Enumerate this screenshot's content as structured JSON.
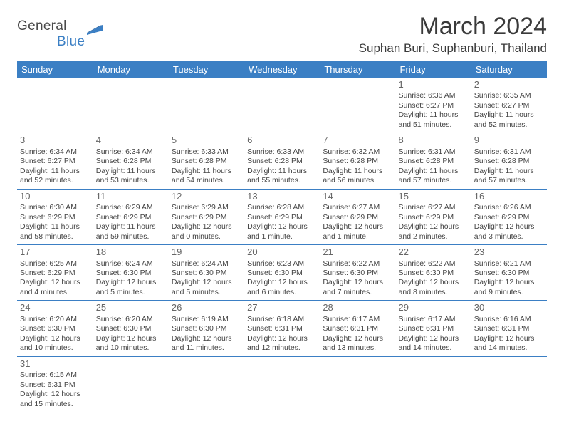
{
  "logo": {
    "general": "General",
    "blue": "Blue"
  },
  "title": "March 2024",
  "location": "Suphan Buri, Suphanburi, Thailand",
  "colors": {
    "brand_blue": "#3b7fc4",
    "text": "#333333",
    "daynum": "#666666",
    "bg": "#ffffff"
  },
  "days_of_week": [
    "Sunday",
    "Monday",
    "Tuesday",
    "Wednesday",
    "Thursday",
    "Friday",
    "Saturday"
  ],
  "calendar": {
    "type": "table",
    "first_weekday_index": 5,
    "num_days": 31,
    "cells": {
      "1": {
        "sunrise": "6:36 AM",
        "sunset": "6:27 PM",
        "daylight": "11 hours and 51 minutes."
      },
      "2": {
        "sunrise": "6:35 AM",
        "sunset": "6:27 PM",
        "daylight": "11 hours and 52 minutes."
      },
      "3": {
        "sunrise": "6:34 AM",
        "sunset": "6:27 PM",
        "daylight": "11 hours and 52 minutes."
      },
      "4": {
        "sunrise": "6:34 AM",
        "sunset": "6:28 PM",
        "daylight": "11 hours and 53 minutes."
      },
      "5": {
        "sunrise": "6:33 AM",
        "sunset": "6:28 PM",
        "daylight": "11 hours and 54 minutes."
      },
      "6": {
        "sunrise": "6:33 AM",
        "sunset": "6:28 PM",
        "daylight": "11 hours and 55 minutes."
      },
      "7": {
        "sunrise": "6:32 AM",
        "sunset": "6:28 PM",
        "daylight": "11 hours and 56 minutes."
      },
      "8": {
        "sunrise": "6:31 AM",
        "sunset": "6:28 PM",
        "daylight": "11 hours and 57 minutes."
      },
      "9": {
        "sunrise": "6:31 AM",
        "sunset": "6:28 PM",
        "daylight": "11 hours and 57 minutes."
      },
      "10": {
        "sunrise": "6:30 AM",
        "sunset": "6:29 PM",
        "daylight": "11 hours and 58 minutes."
      },
      "11": {
        "sunrise": "6:29 AM",
        "sunset": "6:29 PM",
        "daylight": "11 hours and 59 minutes."
      },
      "12": {
        "sunrise": "6:29 AM",
        "sunset": "6:29 PM",
        "daylight": "12 hours and 0 minutes."
      },
      "13": {
        "sunrise": "6:28 AM",
        "sunset": "6:29 PM",
        "daylight": "12 hours and 1 minute."
      },
      "14": {
        "sunrise": "6:27 AM",
        "sunset": "6:29 PM",
        "daylight": "12 hours and 1 minute."
      },
      "15": {
        "sunrise": "6:27 AM",
        "sunset": "6:29 PM",
        "daylight": "12 hours and 2 minutes."
      },
      "16": {
        "sunrise": "6:26 AM",
        "sunset": "6:29 PM",
        "daylight": "12 hours and 3 minutes."
      },
      "17": {
        "sunrise": "6:25 AM",
        "sunset": "6:29 PM",
        "daylight": "12 hours and 4 minutes."
      },
      "18": {
        "sunrise": "6:24 AM",
        "sunset": "6:30 PM",
        "daylight": "12 hours and 5 minutes."
      },
      "19": {
        "sunrise": "6:24 AM",
        "sunset": "6:30 PM",
        "daylight": "12 hours and 5 minutes."
      },
      "20": {
        "sunrise": "6:23 AM",
        "sunset": "6:30 PM",
        "daylight": "12 hours and 6 minutes."
      },
      "21": {
        "sunrise": "6:22 AM",
        "sunset": "6:30 PM",
        "daylight": "12 hours and 7 minutes."
      },
      "22": {
        "sunrise": "6:22 AM",
        "sunset": "6:30 PM",
        "daylight": "12 hours and 8 minutes."
      },
      "23": {
        "sunrise": "6:21 AM",
        "sunset": "6:30 PM",
        "daylight": "12 hours and 9 minutes."
      },
      "24": {
        "sunrise": "6:20 AM",
        "sunset": "6:30 PM",
        "daylight": "12 hours and 10 minutes."
      },
      "25": {
        "sunrise": "6:20 AM",
        "sunset": "6:30 PM",
        "daylight": "12 hours and 10 minutes."
      },
      "26": {
        "sunrise": "6:19 AM",
        "sunset": "6:30 PM",
        "daylight": "12 hours and 11 minutes."
      },
      "27": {
        "sunrise": "6:18 AM",
        "sunset": "6:31 PM",
        "daylight": "12 hours and 12 minutes."
      },
      "28": {
        "sunrise": "6:17 AM",
        "sunset": "6:31 PM",
        "daylight": "12 hours and 13 minutes."
      },
      "29": {
        "sunrise": "6:17 AM",
        "sunset": "6:31 PM",
        "daylight": "12 hours and 14 minutes."
      },
      "30": {
        "sunrise": "6:16 AM",
        "sunset": "6:31 PM",
        "daylight": "12 hours and 14 minutes."
      },
      "31": {
        "sunrise": "6:15 AM",
        "sunset": "6:31 PM",
        "daylight": "12 hours and 15 minutes."
      }
    },
    "labels": {
      "sunrise": "Sunrise:",
      "sunset": "Sunset:",
      "daylight": "Daylight:"
    }
  }
}
